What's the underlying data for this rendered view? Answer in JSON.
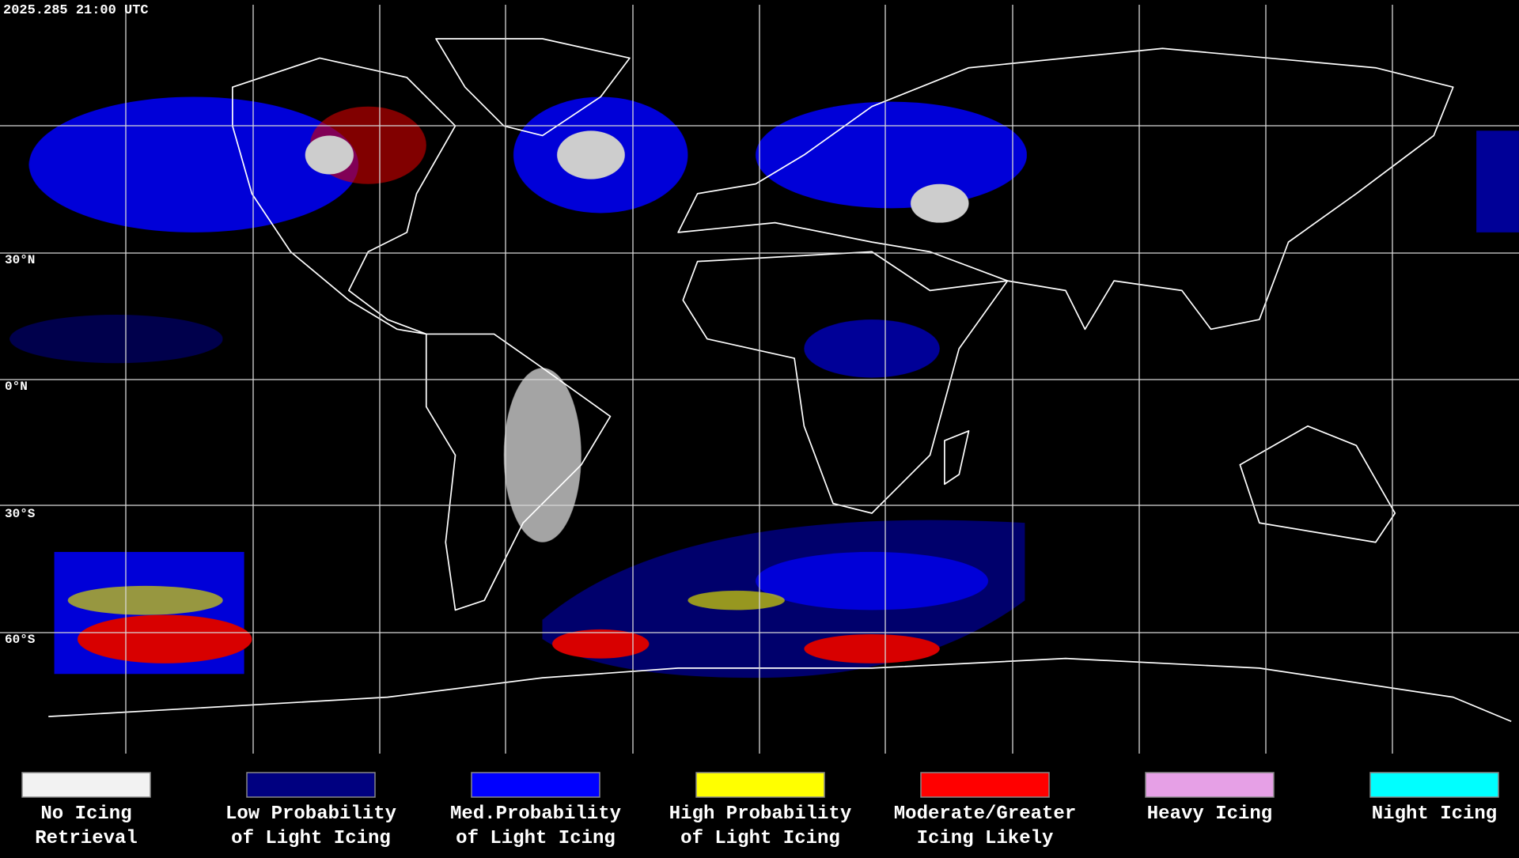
{
  "header": {
    "timestamp": "2025.285 21:00 UTC"
  },
  "map": {
    "latitude_labels": [
      "30°N",
      "0°N",
      "30°S",
      "60°S"
    ]
  },
  "legend": {
    "items": [
      {
        "label_lines": [
          "No Icing",
          "Retrieval"
        ],
        "color": "#f2f2f2"
      },
      {
        "label_lines": [
          "Low Probability",
          "of Light Icing"
        ],
        "color": "#000080"
      },
      {
        "label_lines": [
          "Med.Probability",
          "of Light Icing"
        ],
        "color": "#0000ff"
      },
      {
        "label_lines": [
          "High Probability",
          "of Light Icing"
        ],
        "color": "#ffff00"
      },
      {
        "label_lines": [
          "Moderate/Greater",
          "Icing Likely"
        ],
        "color": "#ff0000"
      },
      {
        "label_lines": [
          "Heavy Icing"
        ],
        "color": "#e6a0e6"
      },
      {
        "label_lines": [
          "Night Icing"
        ],
        "color": "#00ffff"
      }
    ]
  }
}
